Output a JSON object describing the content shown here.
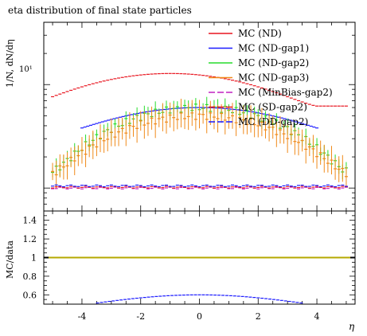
{
  "chart_data": {
    "type": "scatter",
    "title": "eta distribution of final state particles",
    "xlabel": "η",
    "ylabel": "1/N, dN/dη",
    "ratio_ylabel": "MC/data",
    "xlim": [
      -5.3,
      5.3
    ],
    "ylim_log": [
      0.6,
      40
    ],
    "ylim_ratio": [
      0.5,
      1.5
    ],
    "log_y": true,
    "grid": false,
    "legend_position": "top-right",
    "x_ticks": [
      -4,
      -2,
      0,
      2,
      4
    ],
    "x_tick_labels": [
      "-4",
      "-2",
      "0",
      "2",
      "4"
    ],
    "y_tick_major": 10,
    "y_tick_major_label": "10¹",
    "ratio_ticks": [
      0.6,
      0.8,
      1.0,
      1.2,
      1.4
    ],
    "ratio_tick_labels": [
      "0.6",
      "0.8",
      "1",
      "1.2",
      "1.4"
    ],
    "series": [
      {
        "name": "MC (ND)",
        "color": "#e8141e",
        "style": "line",
        "x_range": [
          -5.0,
          5.0
        ],
        "peak": 12.8,
        "peak_x": -1.0,
        "edge": 6.2
      },
      {
        "name": "MC (ND-gap1)",
        "color": "#1a1aff",
        "style": "points",
        "x_range": [
          -4.0,
          4.0
        ],
        "peak": 6.0,
        "edge": 3.2
      },
      {
        "name": "MC (ND-gap2)",
        "color": "#27dc2b",
        "style": "errors",
        "x_range": [
          -5.0,
          5.0
        ],
        "peak": 6.0,
        "edge": 1.45
      },
      {
        "name": "MC (ND-gap3)",
        "color": "#f08a1a",
        "style": "errors",
        "x_range": [
          -5.0,
          5.0
        ],
        "peak": 5.0,
        "edge": 1.4
      },
      {
        "name": "MC (MinBias-gap2)",
        "color": "#c020c0",
        "style": "flat",
        "x_range": [
          -5.0,
          5.0
        ],
        "level": 1.0
      },
      {
        "name": "MC (SD-gap2)",
        "color": "#e8141e",
        "style": "flat",
        "x_range": [
          -5.0,
          5.0
        ],
        "level": 1.02
      },
      {
        "name": "MC (DD-gap2)",
        "color": "#1a1aff",
        "style": "flat",
        "x_range": [
          -5.0,
          5.0
        ],
        "level": 1.05
      }
    ],
    "ratio_series": [
      {
        "name": "MC (ND-gap1)",
        "color": "#1a1aff",
        "x_range": [
          -4.0,
          4.0
        ],
        "peak": 0.6,
        "edge": 0.49
      },
      {
        "name": "MC (ND-gap2)",
        "color": "#27dc2b",
        "x_range": [
          -2.0,
          2.0
        ],
        "peak": 0.5,
        "edge": 0.49
      }
    ]
  }
}
